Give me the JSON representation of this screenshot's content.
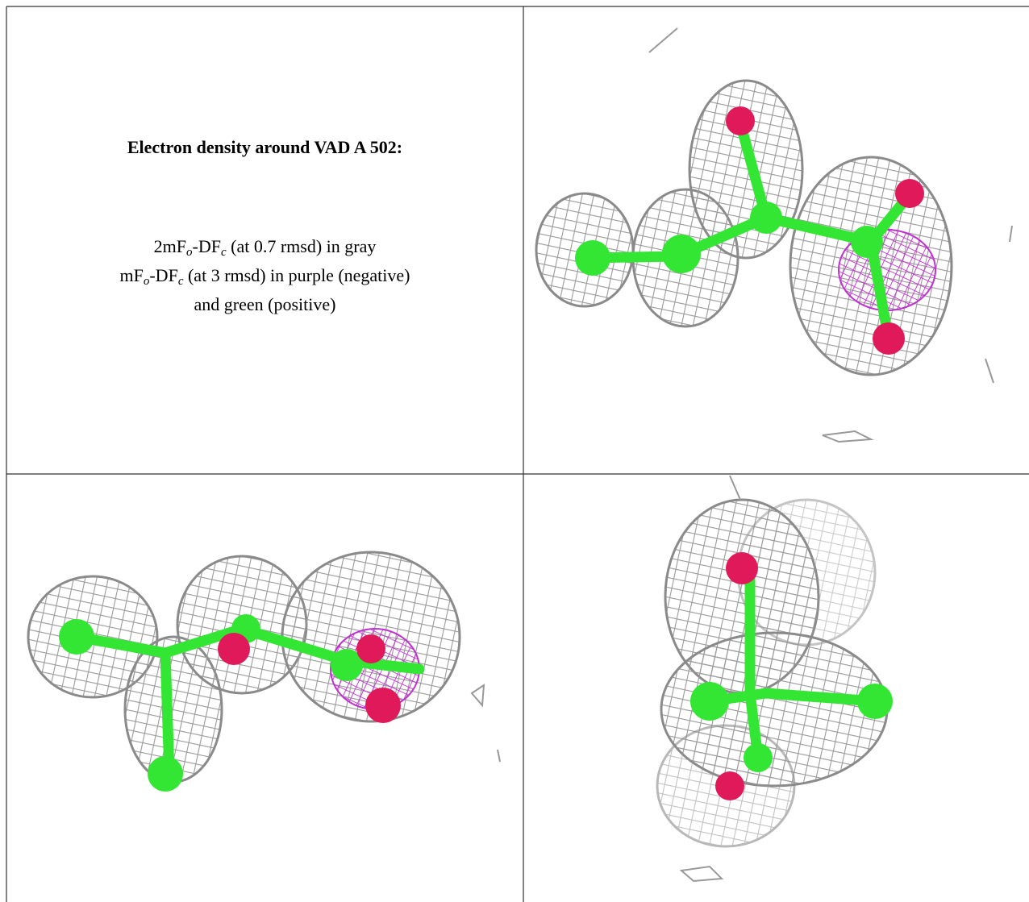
{
  "legend": {
    "title": "Electron density around VAD A 502:",
    "lines": [
      [
        {
          "text": "2mF"
        },
        {
          "sub": "o"
        },
        {
          "text": "-DF"
        },
        {
          "sub": "c"
        },
        {
          "text": " (at 0.7 rmsd) in gray"
        }
      ],
      [
        {
          "text": "mF"
        },
        {
          "sub": "o"
        },
        {
          "text": "-DF"
        },
        {
          "sub": "c"
        },
        {
          "text": " (at 3 rmsd) in purple (negative)"
        }
      ],
      [
        {
          "text": "and green (positive)"
        }
      ]
    ]
  }
}
